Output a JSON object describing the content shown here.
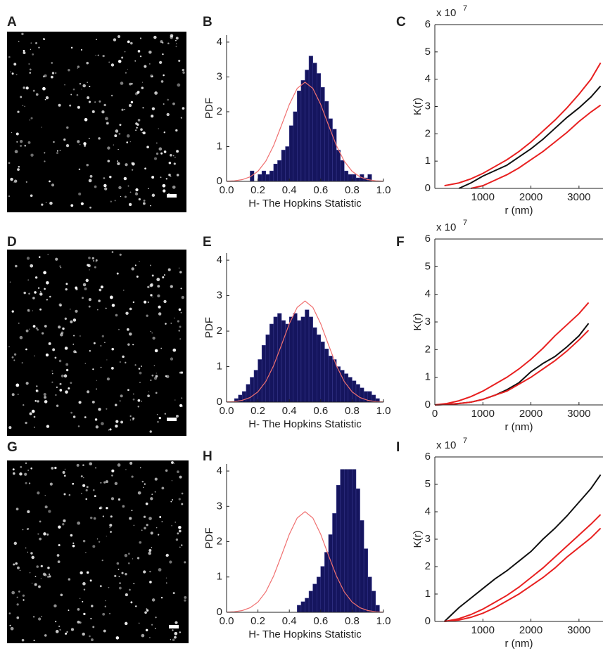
{
  "chart_data": [
    {
      "type": "image",
      "label": "A"
    },
    {
      "type": "histogram",
      "label": "B",
      "xlabel": "H- The Hopkins Statistic",
      "ylabel": "PDF",
      "bar_color": "#15155e",
      "bins": [
        0,
        0.025,
        0.05,
        0.075,
        0.1,
        0.125,
        0.15,
        0.175,
        0.2,
        0.225,
        0.25,
        0.275,
        0.3,
        0.325,
        0.35,
        0.375,
        0.4,
        0.425,
        0.45,
        0.475,
        0.5,
        0.525,
        0.55,
        0.575,
        0.6,
        0.625,
        0.65,
        0.675,
        0.7,
        0.725,
        0.75,
        0.775,
        0.8,
        0.825,
        0.85,
        0.875,
        0.9,
        0.925,
        0.95,
        0.975,
        1.0
      ],
      "values": [
        0,
        0,
        0,
        0,
        0,
        0,
        0.3,
        0,
        0.2,
        0.3,
        0.2,
        0.3,
        0.5,
        0.6,
        0.9,
        1.0,
        1.6,
        2.0,
        2.6,
        2.9,
        3.2,
        3.6,
        3.4,
        3.1,
        2.7,
        2.3,
        1.8,
        1.5,
        0.9,
        0.6,
        0.3,
        0.2,
        0.2,
        0.1,
        0.2,
        0.1,
        0.2,
        0,
        0,
        0
      ],
      "curve": {
        "color": "#f07070",
        "x": [
          0,
          0.05,
          0.1,
          0.15,
          0.2,
          0.25,
          0.3,
          0.35,
          0.4,
          0.45,
          0.5,
          0.55,
          0.6,
          0.65,
          0.7,
          0.75,
          0.8,
          0.85,
          0.9,
          0.95,
          1.0
        ],
        "values": [
          0.005,
          0.016,
          0.05,
          0.13,
          0.29,
          0.58,
          1.03,
          1.61,
          2.21,
          2.67,
          2.85,
          2.67,
          2.21,
          1.61,
          1.03,
          0.58,
          0.29,
          0.13,
          0.05,
          0.016,
          0.005
        ]
      },
      "xlim": [
        0,
        1
      ],
      "ylim": [
        0,
        4.2
      ],
      "xticks": [
        {
          "value": 0,
          "label": "0.0"
        },
        {
          "value": 0.2,
          "label": "0.2"
        },
        {
          "value": 0.4,
          "label": "0.4"
        },
        {
          "value": 0.6,
          "label": "0.6"
        },
        {
          "value": 0.8,
          "label": "0.8"
        },
        {
          "value": 1,
          "label": "1.0"
        }
      ],
      "yticks": [
        0,
        1,
        2,
        3,
        4
      ]
    },
    {
      "type": "line",
      "label": "C",
      "xlabel": "r (nm)",
      "ylabel": "K(r)",
      "y_multiplier": "x 10",
      "y_multiplier_exp": "7",
      "x": [
        200,
        500,
        750,
        1000,
        1250,
        1500,
        1750,
        2000,
        2250,
        2500,
        2750,
        3000,
        3250,
        3450
      ],
      "series": [
        {
          "color": "#111111",
          "values": [
            null,
            0,
            0.2,
            0.45,
            0.65,
            0.85,
            1.15,
            1.45,
            1.8,
            2.2,
            2.6,
            2.95,
            3.35,
            3.75
          ]
        },
        {
          "color": "#e82020",
          "values": [
            0.1,
            0.2,
            0.35,
            0.55,
            0.8,
            1.05,
            1.35,
            1.7,
            2.1,
            2.5,
            2.95,
            3.45,
            4.0,
            4.6
          ]
        },
        {
          "color": "#e82020",
          "values": [
            null,
            null,
            0,
            0.1,
            0.3,
            0.5,
            0.75,
            1.05,
            1.35,
            1.7,
            2.05,
            2.45,
            2.8,
            3.05
          ]
        }
      ],
      "xlim": [
        0,
        3500
      ],
      "ylim": [
        0,
        6
      ],
      "xticks": [
        1000,
        2000,
        3000
      ],
      "yticks": [
        0,
        1,
        2,
        3,
        4,
        5,
        6
      ]
    },
    {
      "type": "image",
      "label": "D"
    },
    {
      "type": "histogram",
      "label": "E",
      "xlabel": "H- The Hopkins Statistic",
      "ylabel": "PDF",
      "bar_color": "#15155e",
      "bins": [
        0,
        0.025,
        0.05,
        0.075,
        0.1,
        0.125,
        0.15,
        0.175,
        0.2,
        0.225,
        0.25,
        0.275,
        0.3,
        0.325,
        0.35,
        0.375,
        0.4,
        0.425,
        0.45,
        0.475,
        0.5,
        0.525,
        0.55,
        0.575,
        0.6,
        0.625,
        0.65,
        0.675,
        0.7,
        0.725,
        0.75,
        0.775,
        0.8,
        0.825,
        0.85,
        0.875,
        0.9,
        0.925,
        0.95,
        0.975,
        1.0
      ],
      "values": [
        0,
        0,
        0.1,
        0.2,
        0.3,
        0.5,
        0.7,
        0.9,
        1.2,
        1.6,
        1.9,
        2.2,
        2.4,
        2.5,
        2.3,
        2.2,
        2.4,
        2.5,
        2.3,
        2.4,
        2.6,
        2.4,
        2.1,
        1.9,
        1.7,
        1.5,
        1.3,
        1.2,
        1.0,
        0.9,
        0.8,
        0.7,
        0.6,
        0.5,
        0.4,
        0.3,
        0.3,
        0.2,
        0.1,
        0
      ],
      "curve": {
        "color": "#f07070",
        "x": [
          0,
          0.05,
          0.1,
          0.15,
          0.2,
          0.25,
          0.3,
          0.35,
          0.4,
          0.45,
          0.5,
          0.55,
          0.6,
          0.65,
          0.7,
          0.75,
          0.8,
          0.85,
          0.9,
          0.95,
          1.0
        ],
        "values": [
          0.005,
          0.016,
          0.05,
          0.13,
          0.29,
          0.58,
          1.03,
          1.61,
          2.21,
          2.67,
          2.85,
          2.67,
          2.21,
          1.61,
          1.03,
          0.58,
          0.29,
          0.13,
          0.05,
          0.016,
          0.005
        ]
      },
      "xlim": [
        0,
        1
      ],
      "ylim": [
        0,
        4.2
      ],
      "xticks": [
        {
          "value": 0,
          "label": "0.0"
        },
        {
          "value": 0.2,
          "label": "0.2"
        },
        {
          "value": 0.4,
          "label": "0.4"
        },
        {
          "value": 0.6,
          "label": "0.6"
        },
        {
          "value": 0.8,
          "label": "0.8"
        },
        {
          "value": 1,
          "label": "1.0"
        }
      ],
      "yticks": [
        0,
        1,
        2,
        3,
        4
      ]
    },
    {
      "type": "line",
      "label": "F",
      "xlabel": "r (nm)",
      "ylabel": "K(r)",
      "y_multiplier": "x 10",
      "y_multiplier_exp": "7",
      "x": [
        0,
        250,
        500,
        750,
        1000,
        1250,
        1500,
        1750,
        2000,
        2250,
        2500,
        2750,
        3000,
        3200
      ],
      "series": [
        {
          "color": "#111111",
          "values": [
            0,
            0.02,
            0.05,
            0.1,
            0.2,
            0.35,
            0.55,
            0.8,
            1.2,
            1.5,
            1.75,
            2.1,
            2.5,
            2.95
          ]
        },
        {
          "color": "#e82020",
          "values": [
            0,
            0.05,
            0.15,
            0.3,
            0.5,
            0.75,
            1.0,
            1.3,
            1.65,
            2.05,
            2.5,
            2.9,
            3.3,
            3.7
          ]
        },
        {
          "color": "#e82020",
          "values": [
            0,
            0.02,
            0.05,
            0.1,
            0.2,
            0.35,
            0.5,
            0.75,
            1.0,
            1.3,
            1.6,
            1.95,
            2.35,
            2.7
          ]
        }
      ],
      "xlim": [
        0,
        3500
      ],
      "ylim": [
        0,
        6
      ],
      "xticks": [
        0,
        1000,
        2000,
        3000
      ],
      "yticks": [
        0,
        1,
        2,
        3,
        4,
        5,
        6
      ]
    },
    {
      "type": "image",
      "label": "G"
    },
    {
      "type": "histogram",
      "label": "H",
      "xlabel": "H- The Hopkins Statistic",
      "ylabel": "PDF",
      "bar_color": "#15155e",
      "bins": [
        0,
        0.025,
        0.05,
        0.075,
        0.1,
        0.125,
        0.15,
        0.175,
        0.2,
        0.225,
        0.25,
        0.275,
        0.3,
        0.325,
        0.35,
        0.375,
        0.4,
        0.425,
        0.45,
        0.475,
        0.5,
        0.525,
        0.55,
        0.575,
        0.6,
        0.625,
        0.65,
        0.675,
        0.7,
        0.725,
        0.75,
        0.775,
        0.8,
        0.825,
        0.85,
        0.875,
        0.9,
        0.925,
        0.95,
        0.975,
        1.0
      ],
      "values": [
        0,
        0,
        0,
        0,
        0,
        0,
        0,
        0,
        0,
        0,
        0,
        0,
        0,
        0,
        0,
        0,
        0,
        0,
        0.2,
        0.3,
        0.4,
        0.6,
        0.8,
        1.0,
        1.3,
        1.7,
        2.2,
        2.8,
        3.6,
        4.1,
        4.2,
        4.2,
        4.1,
        3.5,
        2.6,
        1.8,
        1.0,
        0.6,
        0.2,
        0
      ],
      "curve": {
        "color": "#f07070",
        "x": [
          0,
          0.05,
          0.1,
          0.15,
          0.2,
          0.25,
          0.3,
          0.35,
          0.4,
          0.45,
          0.5,
          0.55,
          0.6,
          0.65,
          0.7,
          0.75,
          0.8,
          0.85,
          0.9,
          0.95,
          1.0
        ],
        "values": [
          0.005,
          0.016,
          0.05,
          0.13,
          0.29,
          0.58,
          1.03,
          1.61,
          2.21,
          2.67,
          2.85,
          2.67,
          2.21,
          1.61,
          1.03,
          0.58,
          0.29,
          0.13,
          0.05,
          0.016,
          0.005
        ]
      },
      "xlim": [
        0,
        1
      ],
      "ylim": [
        0,
        4.2
      ],
      "xticks": [
        {
          "value": 0,
          "label": "0.0"
        },
        {
          "value": 0.2,
          "label": "0.2"
        },
        {
          "value": 0.4,
          "label": "0.4"
        },
        {
          "value": 0.6,
          "label": "0.6"
        },
        {
          "value": 0.8,
          "label": "0.8"
        },
        {
          "value": 1,
          "label": "1.0"
        }
      ],
      "yticks": [
        0,
        1,
        2,
        3,
        4
      ]
    },
    {
      "type": "line",
      "label": "I",
      "xlabel": "r (nm)",
      "ylabel": "K(r)",
      "y_multiplier": "x 10",
      "y_multiplier_exp": "7",
      "x": [
        200,
        500,
        750,
        1000,
        1250,
        1500,
        1750,
        2000,
        2250,
        2500,
        2750,
        3000,
        3250,
        3450
      ],
      "series": [
        {
          "color": "#111111",
          "values": [
            0,
            0.5,
            0.85,
            1.2,
            1.55,
            1.85,
            2.2,
            2.55,
            3.0,
            3.4,
            3.85,
            4.35,
            4.85,
            5.35
          ]
        },
        {
          "color": "#e82020",
          "values": [
            0,
            0.1,
            0.25,
            0.45,
            0.7,
            0.95,
            1.25,
            1.6,
            1.95,
            2.35,
            2.75,
            3.15,
            3.55,
            3.9
          ]
        },
        {
          "color": "#e82020",
          "values": [
            0,
            0.05,
            0.15,
            0.3,
            0.5,
            0.75,
            1.0,
            1.3,
            1.6,
            1.95,
            2.35,
            2.7,
            3.05,
            3.4
          ]
        }
      ],
      "xlim": [
        0,
        3500
      ],
      "ylim": [
        0,
        6
      ],
      "xticks": [
        1000,
        2000,
        3000
      ],
      "yticks": [
        0,
        1,
        2,
        3,
        4,
        5,
        6
      ]
    }
  ]
}
